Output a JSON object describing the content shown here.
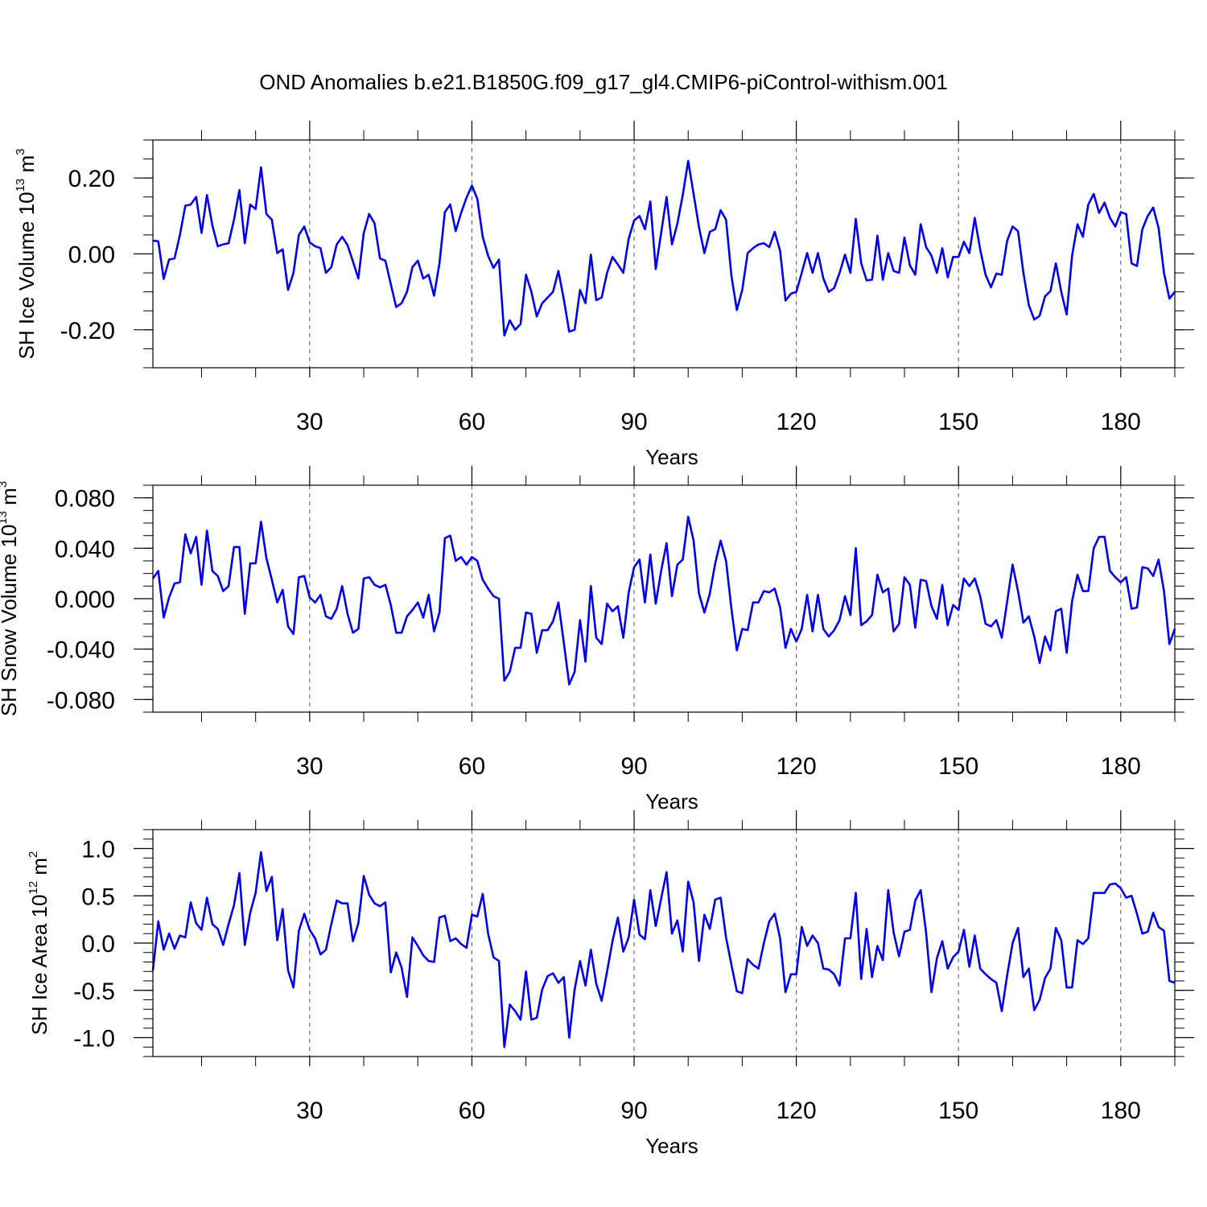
{
  "title": "OND Anomalies b.e21.B1850G.f09_g17_gl4.CMIP6-piControl-withism.001",
  "chart_data": [
    {
      "type": "line",
      "id": "ice-volume",
      "ylabel_main": "SH Ice Volume 10",
      "ylabel_exp": "13",
      "ylabel_unit": " m",
      "ylabel_unit_exp": "3",
      "xlabel": "Years",
      "xlim": [
        1,
        190
      ],
      "ylim": [
        -0.3,
        0.3
      ],
      "xticks": [
        30,
        60,
        90,
        120,
        150,
        180
      ],
      "xtick_labels": [
        "30",
        "60",
        "90",
        "120",
        "150",
        "180"
      ],
      "yticks": [
        -0.2,
        0.0,
        0.2
      ],
      "ytick_labels": [
        "-0.20",
        "0.00",
        "0.20"
      ],
      "y_minor_step": 0.05,
      "grid": "vertical dashed at major x ticks",
      "line_color": "#0000ee",
      "x_start": 1,
      "values": [
        0.035,
        0.033,
        -0.066,
        -0.015,
        -0.012,
        0.05,
        0.127,
        0.13,
        0.15,
        0.055,
        0.155,
        0.075,
        0.02,
        0.025,
        0.028,
        0.09,
        0.168,
        0.028,
        0.13,
        0.118,
        0.228,
        0.105,
        0.09,
        0.002,
        0.012,
        -0.095,
        -0.05,
        0.05,
        0.072,
        0.03,
        0.02,
        0.015,
        -0.05,
        -0.035,
        0.025,
        0.045,
        0.023,
        -0.02,
        -0.065,
        0.055,
        0.105,
        0.08,
        -0.012,
        -0.018,
        -0.08,
        -0.14,
        -0.13,
        -0.1,
        -0.035,
        -0.018,
        -0.065,
        -0.055,
        -0.11,
        -0.025,
        0.11,
        0.13,
        0.06,
        0.108,
        0.148,
        0.18,
        0.145,
        0.045,
        -0.005,
        -0.037,
        -0.015,
        -0.215,
        -0.175,
        -0.2,
        -0.185,
        -0.055,
        -0.1,
        -0.165,
        -0.13,
        -0.115,
        -0.1,
        -0.045,
        -0.12,
        -0.205,
        -0.2,
        -0.095,
        -0.13,
        -0.002,
        -0.122,
        -0.115,
        -0.05,
        -0.008,
        -0.028,
        -0.05,
        0.04,
        0.088,
        0.1,
        0.065,
        0.138,
        -0.04,
        0.055,
        0.15,
        0.025,
        0.08,
        0.155,
        0.245,
        0.158,
        0.07,
        0.002,
        0.058,
        0.065,
        0.115,
        0.09,
        -0.058,
        -0.148,
        -0.095,
        0.002,
        0.015,
        0.025,
        0.028,
        0.018,
        0.058,
        0.008,
        -0.123,
        -0.105,
        -0.1,
        -0.05,
        0.002,
        -0.05,
        0.002,
        -0.065,
        -0.1,
        -0.09,
        -0.05,
        -0.002,
        -0.05,
        0.092,
        -0.025,
        -0.07,
        -0.068,
        0.048,
        -0.068,
        0.002,
        -0.045,
        -0.05,
        0.043,
        -0.03,
        -0.055,
        0.078,
        0.018,
        -0.005,
        -0.05,
        0.015,
        -0.062,
        -0.008,
        -0.008,
        0.032,
        0.002,
        0.095,
        0.012,
        -0.055,
        -0.088,
        -0.052,
        -0.055,
        0.035,
        0.072,
        0.06,
        -0.05,
        -0.135,
        -0.173,
        -0.163,
        -0.112,
        -0.098,
        -0.025,
        -0.1,
        -0.16,
        -0.005,
        0.078,
        0.045,
        0.13,
        0.158,
        0.108,
        0.135,
        0.095,
        0.072,
        0.11,
        0.105,
        -0.025,
        -0.032,
        0.065,
        0.1,
        0.122,
        0.068,
        -0.05,
        -0.118,
        -0.1
      ]
    },
    {
      "type": "line",
      "id": "snow-volume",
      "ylabel_main": "SH Snow Volume 10",
      "ylabel_exp": "13",
      "ylabel_unit": " m",
      "ylabel_unit_exp": "3",
      "xlabel": "Years",
      "xlim": [
        1,
        190
      ],
      "ylim": [
        -0.09,
        0.09
      ],
      "xticks": [
        30,
        60,
        90,
        120,
        150,
        180
      ],
      "xtick_labels": [
        "30",
        "60",
        "90",
        "120",
        "150",
        "180"
      ],
      "yticks": [
        -0.08,
        -0.04,
        0.0,
        0.04,
        0.08
      ],
      "ytick_labels": [
        "-0.080",
        "-0.040",
        "0.000",
        "0.040",
        "0.080"
      ],
      "y_minor_step": 0.01,
      "grid": "vertical dashed at major x ticks",
      "line_color": "#0000ee",
      "x_start": 1,
      "values": [
        0.016,
        0.022,
        -0.015,
        0.001,
        0.012,
        0.013,
        0.051,
        0.036,
        0.049,
        0.011,
        0.054,
        0.022,
        0.018,
        0.006,
        0.01,
        0.041,
        0.041,
        -0.012,
        0.028,
        0.028,
        0.061,
        0.032,
        0.015,
        -0.003,
        0.007,
        -0.022,
        -0.028,
        0.017,
        0.018,
        0.001,
        -0.003,
        0.003,
        -0.014,
        -0.016,
        -0.008,
        0.01,
        -0.012,
        -0.027,
        -0.024,
        0.016,
        0.017,
        0.011,
        0.009,
        0.011,
        -0.005,
        -0.027,
        -0.027,
        -0.014,
        -0.009,
        -0.003,
        -0.015,
        0.003,
        -0.026,
        -0.011,
        0.048,
        0.05,
        0.03,
        0.033,
        0.027,
        0.033,
        0.03,
        0.015,
        0.008,
        0.002,
        0.0,
        -0.065,
        -0.058,
        -0.039,
        -0.039,
        -0.011,
        -0.012,
        -0.043,
        -0.025,
        -0.025,
        -0.018,
        -0.003,
        -0.035,
        -0.068,
        -0.058,
        -0.017,
        -0.05,
        0.01,
        -0.031,
        -0.036,
        -0.004,
        -0.01,
        -0.006,
        -0.031,
        0.005,
        0.025,
        0.031,
        -0.003,
        0.035,
        -0.004,
        0.022,
        0.044,
        0.002,
        0.027,
        0.031,
        0.065,
        0.046,
        0.004,
        -0.011,
        0.004,
        0.028,
        0.046,
        0.03,
        -0.008,
        -0.041,
        -0.024,
        -0.025,
        -0.003,
        -0.003,
        0.006,
        0.005,
        0.008,
        -0.007,
        -0.039,
        -0.024,
        -0.034,
        -0.024,
        0.003,
        -0.026,
        0.003,
        -0.024,
        -0.03,
        -0.025,
        -0.017,
        0.002,
        -0.013,
        0.04,
        -0.021,
        -0.018,
        -0.013,
        0.019,
        0.005,
        0.008,
        -0.026,
        -0.02,
        0.017,
        0.011,
        -0.023,
        0.015,
        0.014,
        -0.006,
        -0.016,
        0.011,
        -0.021,
        -0.005,
        -0.009,
        0.016,
        0.01,
        0.016,
        0.002,
        -0.02,
        -0.022,
        -0.017,
        -0.031,
        -0.002,
        0.027,
        0.006,
        -0.019,
        -0.014,
        -0.03,
        -0.051,
        -0.03,
        -0.041,
        -0.01,
        -0.008,
        -0.043,
        -0.002,
        0.019,
        0.006,
        0.006,
        0.04,
        0.049,
        0.049,
        0.022,
        0.017,
        0.013,
        0.017,
        -0.008,
        -0.007,
        0.025,
        0.024,
        0.018,
        0.031,
        0.006,
        -0.036,
        -0.024
      ]
    },
    {
      "type": "line",
      "id": "ice-area",
      "ylabel_main": "SH Ice Area 10",
      "ylabel_exp": "12",
      "ylabel_unit": " m",
      "ylabel_unit_exp": "2",
      "xlabel": "Years",
      "xlim": [
        1,
        190
      ],
      "ylim": [
        -1.2,
        1.2
      ],
      "xticks": [
        30,
        60,
        90,
        120,
        150,
        180
      ],
      "xtick_labels": [
        "30",
        "60",
        "90",
        "120",
        "150",
        "180"
      ],
      "yticks": [
        -1.0,
        -0.5,
        0.0,
        0.5,
        1.0
      ],
      "ytick_labels": [
        "-1.0",
        "-0.5",
        "0.0",
        "0.5",
        "1.0"
      ],
      "y_minor_step": 0.1,
      "grid": "vertical dashed at major x ticks",
      "line_color": "#0000ee",
      "x_start": 1,
      "values": [
        -0.29,
        0.23,
        -0.07,
        0.1,
        -0.06,
        0.08,
        0.06,
        0.43,
        0.21,
        0.14,
        0.48,
        0.2,
        0.15,
        -0.02,
        0.2,
        0.4,
        0.74,
        -0.02,
        0.32,
        0.53,
        0.96,
        0.55,
        0.7,
        0.03,
        0.36,
        -0.29,
        -0.47,
        0.13,
        0.31,
        0.14,
        0.05,
        -0.12,
        -0.07,
        0.2,
        0.45,
        0.42,
        0.42,
        0.02,
        0.21,
        0.71,
        0.51,
        0.42,
        0.39,
        0.43,
        -0.31,
        -0.1,
        -0.26,
        -0.57,
        0.06,
        -0.03,
        -0.13,
        -0.19,
        -0.2,
        0.27,
        0.29,
        0.02,
        0.05,
        -0.01,
        -0.05,
        0.3,
        0.28,
        0.52,
        0.1,
        -0.15,
        -0.19,
        -1.1,
        -0.65,
        -0.72,
        -0.81,
        -0.3,
        -0.81,
        -0.79,
        -0.49,
        -0.35,
        -0.32,
        -0.42,
        -0.36,
        -1.0,
        -0.49,
        -0.19,
        -0.45,
        -0.07,
        -0.43,
        -0.61,
        -0.3,
        0.02,
        0.27,
        -0.09,
        0.06,
        0.46,
        0.09,
        0.04,
        0.56,
        0.18,
        0.47,
        0.75,
        0.1,
        0.24,
        -0.09,
        0.65,
        0.43,
        -0.19,
        0.3,
        0.15,
        0.46,
        0.48,
        0.06,
        -0.23,
        -0.51,
        -0.53,
        -0.17,
        -0.23,
        -0.27,
        0.0,
        0.23,
        0.31,
        0.05,
        -0.52,
        -0.33,
        -0.33,
        0.17,
        -0.03,
        0.08,
        0.0,
        -0.27,
        -0.28,
        -0.33,
        -0.45,
        0.05,
        0.05,
        0.53,
        -0.38,
        0.15,
        -0.36,
        -0.03,
        -0.18,
        0.56,
        0.11,
        -0.14,
        0.12,
        0.14,
        0.45,
        0.56,
        0.11,
        -0.52,
        -0.16,
        0.02,
        -0.27,
        -0.15,
        -0.09,
        0.14,
        -0.25,
        0.08,
        -0.27,
        -0.33,
        -0.38,
        -0.42,
        -0.72,
        -0.34,
        0.0,
        0.16,
        -0.36,
        -0.27,
        -0.71,
        -0.6,
        -0.37,
        -0.27,
        0.16,
        0.03,
        -0.47,
        -0.47,
        0.03,
        -0.01,
        0.05,
        0.53,
        0.53,
        0.53,
        0.62,
        0.63,
        0.58,
        0.48,
        0.5,
        0.31,
        0.1,
        0.12,
        0.32,
        0.17,
        0.13,
        -0.4,
        -0.42
      ]
    }
  ]
}
